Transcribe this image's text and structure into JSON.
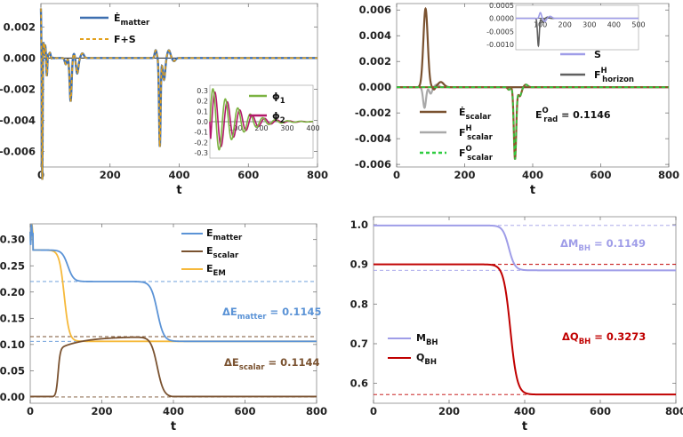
{
  "chart_data": [
    {
      "type": "line",
      "id": "A",
      "xlabel": "t",
      "xlim": [
        0,
        800
      ],
      "ylim": [
        -0.007,
        0.0035
      ],
      "xticks": [
        "0",
        "200",
        "400",
        "600",
        "800"
      ],
      "yticks": [
        "0.002",
        "0.000",
        "-0.002",
        "-0.004",
        "-0.006"
      ],
      "series": [
        {
          "name": "Ė",
          "sub": "matter",
          "color": "#3d6fb0",
          "style": "solid"
        },
        {
          "name": "F+S",
          "sub": "",
          "color": "#e3a01b",
          "style": "dashed"
        }
      ],
      "inset": {
        "xlim": [
          0,
          400
        ],
        "ylim": [
          -0.35,
          0.35
        ],
        "xticks": [
          "100",
          "200",
          "300",
          "400"
        ],
        "yticks": [
          "0.3",
          "0.2",
          "0.1",
          "0.0",
          "-0.1",
          "-0.2",
          "-0.3"
        ],
        "series": [
          {
            "name": "ϕ",
            "sub": "1",
            "color": "#7cb342"
          },
          {
            "name": "ϕ",
            "sub": "2",
            "color": "#b3186b"
          }
        ]
      }
    },
    {
      "type": "line",
      "id": "B",
      "xlabel": "t",
      "xlim": [
        0,
        800
      ],
      "ylim": [
        -0.0062,
        0.0065
      ],
      "xticks": [
        "0",
        "200",
        "400",
        "600",
        "800"
      ],
      "yticks": [
        "0.006",
        "0.004",
        "0.002",
        "0.000",
        "-0.002",
        "-0.004",
        "-0.006"
      ],
      "series": [
        {
          "name": "Ė",
          "sub": "scalar",
          "sup": "",
          "color": "#7a5230",
          "style": "solid"
        },
        {
          "name": "F",
          "sub": "scalar",
          "sup": "H",
          "color": "#a9a9a9",
          "style": "solid"
        },
        {
          "name": "F",
          "sub": "scalar",
          "sup": "O",
          "color": "#2ecc40",
          "style": "dashed"
        }
      ],
      "annotation": {
        "pre": "E",
        "sub": "rad",
        "sup": "O",
        "post": " = 0.1146"
      },
      "inset": {
        "xlim": [
          0,
          500
        ],
        "ylim": [
          -0.0012,
          0.0005
        ],
        "xticks": [
          "100",
          "200",
          "300",
          "400",
          "500"
        ],
        "yticks": [
          "0.0005",
          "0.0000",
          "-0.0005",
          "-0.0010"
        ],
        "series": [
          {
            "name": "S",
            "sub": "",
            "sup": "",
            "color": "#9f9de8"
          },
          {
            "name": "F",
            "sub": "horizon",
            "sup": "H",
            "color": "#606060"
          }
        ]
      }
    },
    {
      "type": "line",
      "id": "C",
      "xlabel": "t",
      "xlim": [
        0,
        800
      ],
      "ylim": [
        -0.012,
        0.33
      ],
      "xticks": [
        "0",
        "200",
        "400",
        "600",
        "800"
      ],
      "yticks": [
        "0.30",
        "0.25",
        "0.20",
        "0.15",
        "0.10",
        "0.05",
        "0.00"
      ],
      "series": [
        {
          "name": "E",
          "sub": "matter",
          "color": "#5b93d6"
        },
        {
          "name": "E",
          "sub": "scalar",
          "color": "#7a5230"
        },
        {
          "name": "E",
          "sub": "EM",
          "color": "#f6b93b"
        }
      ],
      "reference_lines": [
        0.22,
        0.106,
        0.115,
        0.0
      ],
      "annotations": [
        {
          "pre": "ΔE",
          "sub": "matter",
          "post": " = 0.1145",
          "color": "#5b93d6"
        },
        {
          "pre": "ΔE",
          "sub": "scalar",
          "post": " = 0.1144",
          "color": "#7a5230"
        }
      ]
    },
    {
      "type": "line",
      "id": "D",
      "xlabel": "t",
      "xlim": [
        0,
        800
      ],
      "ylim": [
        0.55,
        1.02
      ],
      "xticks": [
        "0",
        "200",
        "400",
        "600",
        "800"
      ],
      "yticks": [
        "1.0",
        "0.9",
        "0.8",
        "0.7",
        "0.6"
      ],
      "series": [
        {
          "name": "M",
          "sub": "BH",
          "color": "#9f9de8"
        },
        {
          "name": "Q",
          "sub": "BH",
          "color": "#c00000"
        }
      ],
      "reference_lines": [
        0.998,
        0.9,
        0.885,
        0.572
      ],
      "annotations": [
        {
          "pre": "ΔM",
          "sub": "BH",
          "post": " = 0.1149",
          "color": "#9f9de8"
        },
        {
          "pre": "ΔQ",
          "sub": "BH",
          "post": " = 0.3273",
          "color": "#c00000"
        }
      ]
    }
  ]
}
